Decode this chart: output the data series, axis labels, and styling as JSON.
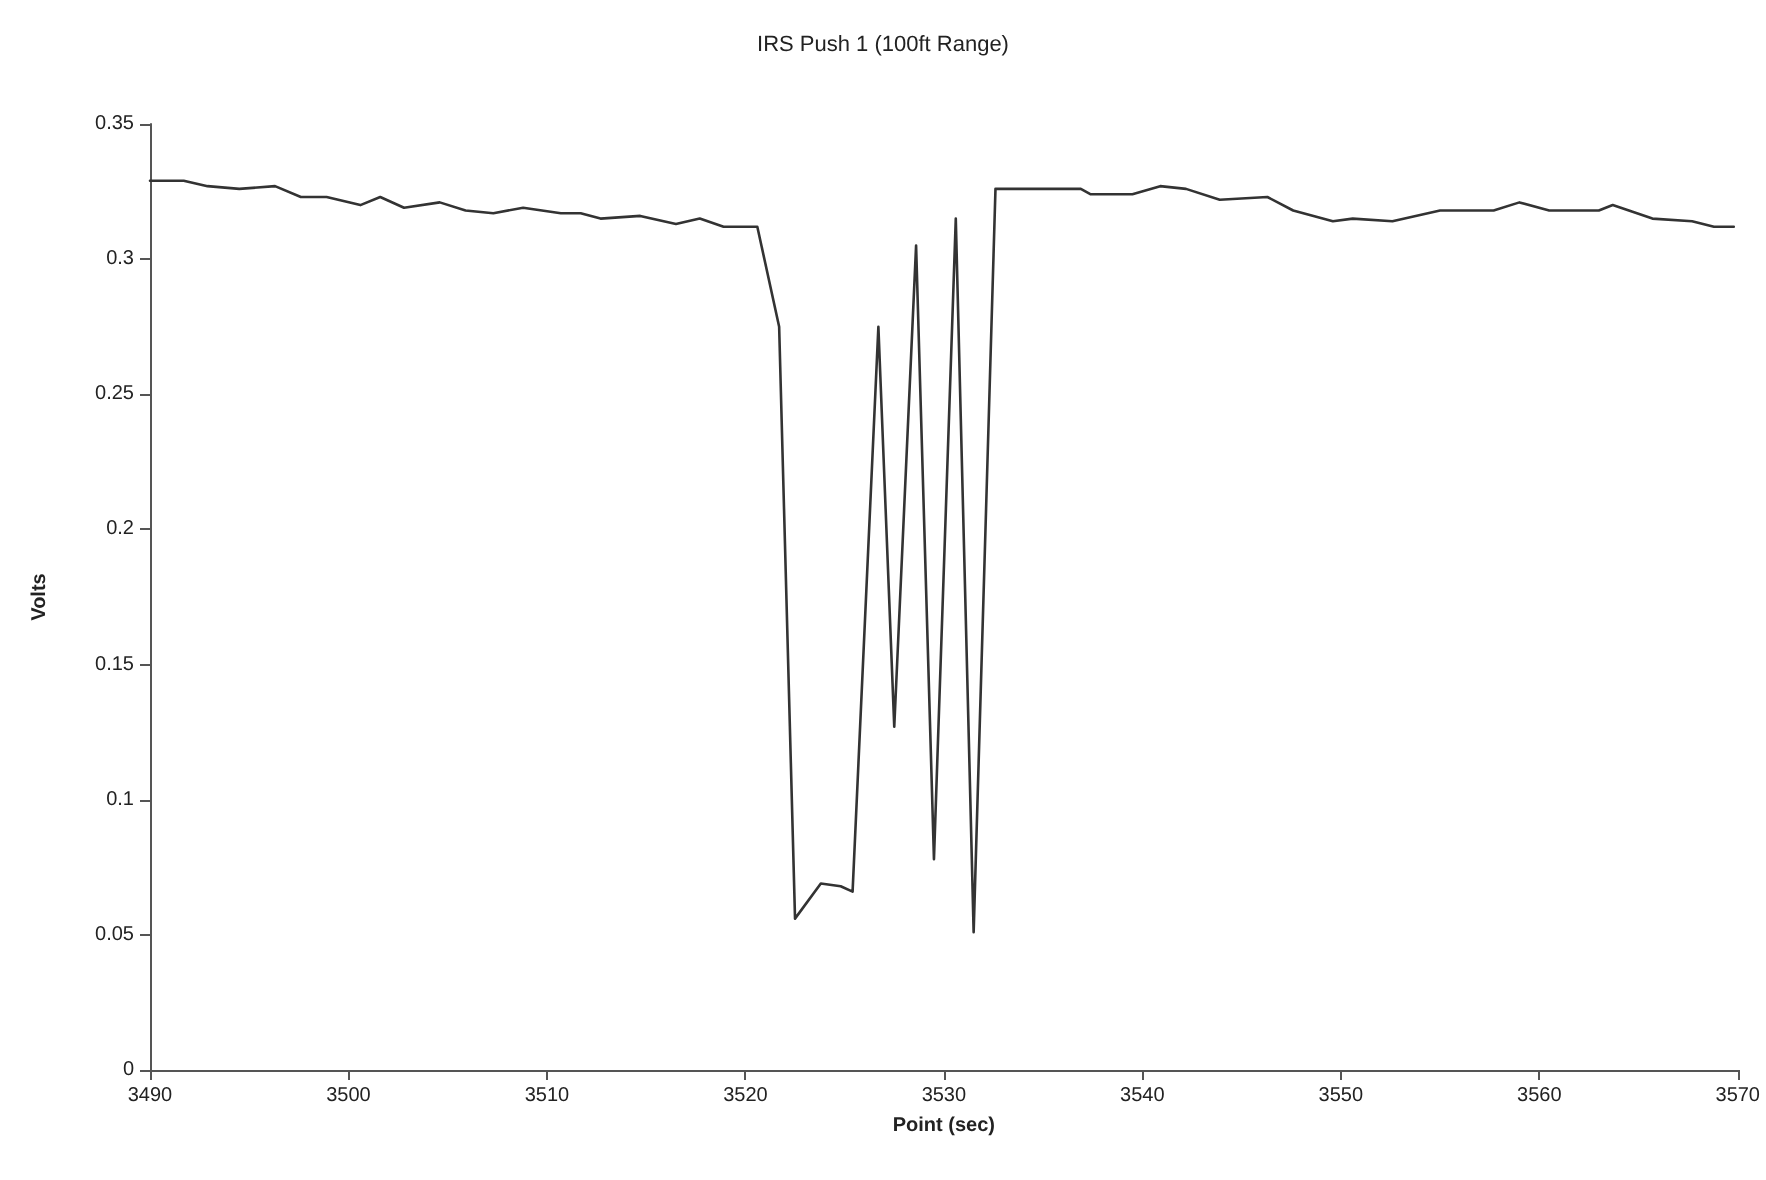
{
  "chart_data": {
    "type": "line",
    "title": "IRS Push 1 (100ft Range)",
    "xlabel": "Point (sec)",
    "ylabel": "Volts",
    "xlim": [
      3490,
      3570
    ],
    "xticks": [
      3490,
      3500,
      3510,
      3520,
      3530,
      3540,
      3550,
      3560,
      3570
    ],
    "ylim": [
      0,
      0.35
    ],
    "yticks": [
      0,
      0.05,
      0.1,
      0.15,
      0.2,
      0.25,
      0.3,
      0.35
    ],
    "grid": false,
    "marker": "none",
    "line_style": "solid",
    "series": [
      {
        "color": "#333333",
        "x": [
          3490,
          3491.7,
          3492.9,
          3494.5,
          3496.3,
          3497.6,
          3498.9,
          3500.6,
          3501.6,
          3502.8,
          3504.6,
          3505.9,
          3507.3,
          3508.8,
          3510.7,
          3511.7,
          3512.7,
          3514.7,
          3516.5,
          3517.7,
          3518.9,
          3520.6,
          3521.7,
          3522.5,
          3523.8,
          3524.8,
          3525.4,
          3526.7,
          3527.5,
          3528.6,
          3529.5,
          3530.6,
          3531.5,
          3532.6,
          3536.9,
          3537.4,
          3539.5,
          3540.9,
          3542.2,
          3543.9,
          3546.3,
          3547.6,
          3549.6,
          3550.6,
          3552.6,
          3555,
          3557.7,
          3559,
          3560.5,
          3563,
          3563.7,
          3565.7,
          3567.7,
          3568.8,
          3569.8
        ],
        "values": [
          0.329,
          0.329,
          0.327,
          0.326,
          0.327,
          0.323,
          0.323,
          0.32,
          0.323,
          0.319,
          0.321,
          0.318,
          0.317,
          0.319,
          0.317,
          0.317,
          0.315,
          0.316,
          0.313,
          0.315,
          0.312,
          0.312,
          0.275,
          0.056,
          0.069,
          0.068,
          0.066,
          0.275,
          0.127,
          0.305,
          0.078,
          0.315,
          0.051,
          0.326,
          0.326,
          0.324,
          0.324,
          0.327,
          0.326,
          0.322,
          0.323,
          0.318,
          0.314,
          0.315,
          0.314,
          0.318,
          0.318,
          0.321,
          0.318,
          0.318,
          0.32,
          0.315,
          0.314,
          0.312,
          0.312
        ]
      }
    ]
  }
}
